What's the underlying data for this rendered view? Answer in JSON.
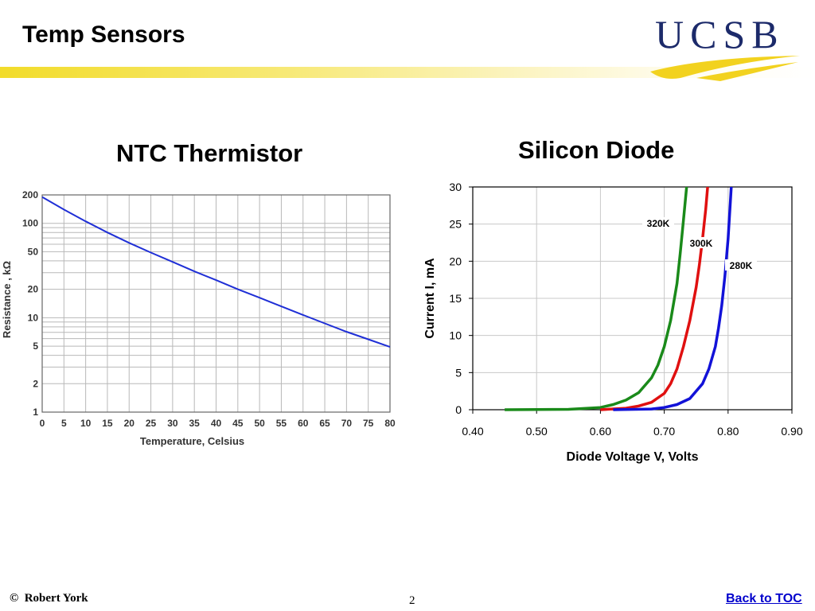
{
  "slide": {
    "title": "Temp Sensors",
    "copyright_symbol": "©",
    "author": "Robert York",
    "page_number": "2",
    "back_link": "Back to TOC"
  },
  "logo": {
    "text": "UCSB",
    "colors": {
      "text": "#1c2a6a",
      "swoosh": "#f2d21f"
    }
  },
  "colors": {
    "title_band": "#f2dc2a"
  },
  "chart_data": [
    {
      "type": "line",
      "title": "NTC Thermistor",
      "xlabel": "Temperature, Celsius",
      "ylabel": "Resistance , kΩ",
      "xlim": [
        0,
        80
      ],
      "ylim": [
        1,
        200
      ],
      "yscale": "log",
      "grid": true,
      "x_ticks": [
        "0",
        "5",
        "10",
        "15",
        "20",
        "25",
        "30",
        "35",
        "40",
        "45",
        "50",
        "55",
        "60",
        "65",
        "70",
        "75",
        "80"
      ],
      "y_ticks": [
        "1",
        "2",
        "5",
        "10",
        "20",
        "50",
        "100",
        "200"
      ],
      "series": [
        {
          "color": "#1f2fd6",
          "x": [
            0,
            5,
            10,
            15,
            20,
            25,
            30,
            35,
            40,
            45,
            50,
            55,
            60,
            65,
            70,
            75,
            80
          ],
          "y": [
            190,
            140,
            105,
            80,
            62,
            49,
            39,
            31,
            25,
            20,
            16.3,
            13.2,
            10.7,
            8.7,
            7.1,
            5.9,
            4.9
          ]
        }
      ]
    },
    {
      "type": "line",
      "title": "Silicon Diode",
      "xlabel": "Diode Voltage V, Volts",
      "ylabel": "Current I, mA",
      "xlim": [
        0.4,
        0.9
      ],
      "ylim": [
        0,
        30
      ],
      "grid": true,
      "x_ticks": [
        "0.40",
        "0.50",
        "0.60",
        "0.70",
        "0.80",
        "0.90"
      ],
      "y_ticks": [
        "0",
        "5",
        "10",
        "15",
        "20",
        "25",
        "30"
      ],
      "series": [
        {
          "name": "320K",
          "color": "#1a8a1a",
          "x": [
            0.45,
            0.55,
            0.6,
            0.62,
            0.64,
            0.66,
            0.68,
            0.69,
            0.7,
            0.71,
            0.72,
            0.725,
            0.73,
            0.735
          ],
          "y": [
            0,
            0.05,
            0.3,
            0.7,
            1.3,
            2.3,
            4.3,
            6,
            8.5,
            12,
            17,
            21,
            25.5,
            30
          ]
        },
        {
          "name": "300K",
          "color": "#e01010",
          "x": [
            0.6,
            0.64,
            0.66,
            0.68,
            0.7,
            0.71,
            0.72,
            0.73,
            0.74,
            0.75,
            0.755,
            0.76,
            0.765,
            0.768
          ],
          "y": [
            0,
            0.2,
            0.5,
            1.0,
            2.2,
            3.5,
            5.5,
            8.5,
            12,
            16.5,
            19.5,
            23,
            27,
            30
          ]
        },
        {
          "name": "280K",
          "color": "#1212d8",
          "x": [
            0.62,
            0.68,
            0.7,
            0.72,
            0.74,
            0.76,
            0.77,
            0.78,
            0.785,
            0.79,
            0.795,
            0.8,
            0.805
          ],
          "y": [
            0,
            0.1,
            0.3,
            0.7,
            1.5,
            3.5,
            5.5,
            8.5,
            11,
            14,
            18,
            23,
            30
          ]
        }
      ],
      "annotations": [
        "320K",
        "300K",
        "280K"
      ]
    }
  ]
}
